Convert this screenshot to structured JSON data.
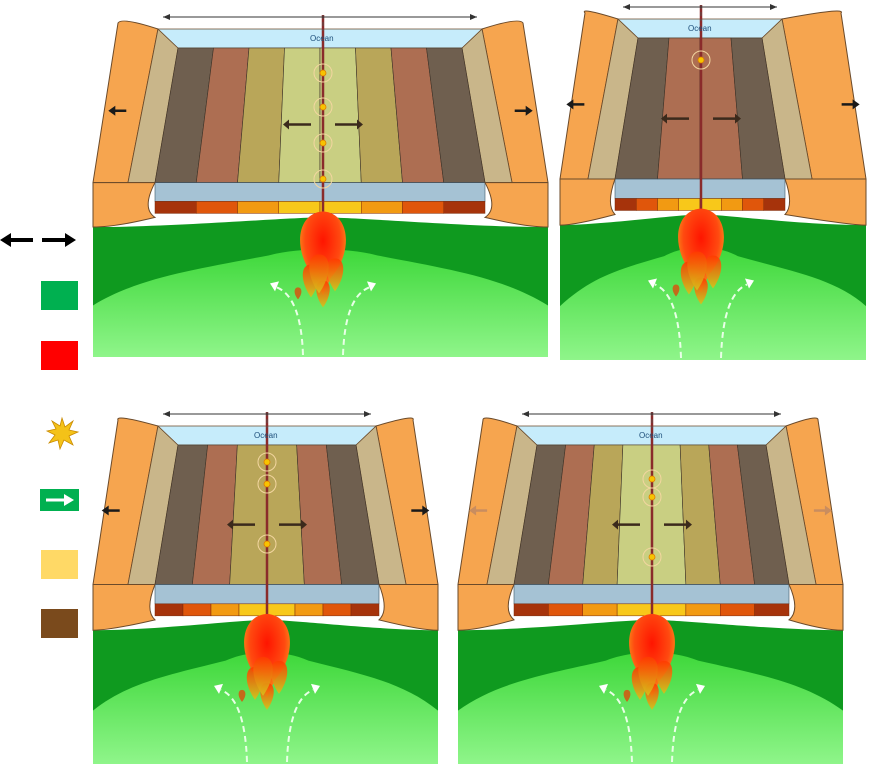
{
  "ocean_label": "Ocean",
  "colors": {
    "mantle_dark": "#0f9a1f",
    "mantle_light": "#5ee85a",
    "magma": "#ff1a00",
    "melt": "#ff9a3c",
    "ocean": "#c6ecfb",
    "crust": "#f6a54f",
    "sediment": "#c9b68a",
    "earthquake": "#f7c400",
    "legend_green": "#00b050",
    "legend_red": "#ff0000",
    "legend_star": "#f4c218",
    "legend_yellow": "#ffd966",
    "legend_brown": "#7a4a1c"
  },
  "legend_icons": [
    "spreading-arrows-icon",
    "mantle-swatch",
    "magma-swatch",
    "earthquake-star-icon",
    "mantle-flow-arrow-icon",
    "young-crust-swatch",
    "old-crust-swatch"
  ],
  "panels": [
    {
      "name": "panel-top-left",
      "stripes": [
        "#6f5f4f",
        "#ad6e52",
        "#b9a659",
        "#c9cf82",
        "#c9cf82",
        "#b9a659",
        "#ad6e52",
        "#6f5f4f"
      ]
    },
    {
      "name": "panel-top-right",
      "stripes": [
        "#6f5f4f",
        "#ad6e52",
        "#ad6e52",
        "#6f5f4f"
      ]
    },
    {
      "name": "panel-bottom-left",
      "stripes": [
        "#6f5f4f",
        "#ad6e52",
        "#b9a659",
        "#b9a659",
        "#ad6e52",
        "#6f5f4f"
      ]
    },
    {
      "name": "panel-bottom-right",
      "stripes": [
        "#6f5f4f",
        "#ad6e52",
        "#b9a659",
        "#c9cf82",
        "#c9cf82",
        "#b9a659",
        "#ad6e52",
        "#6f5f4f"
      ]
    }
  ]
}
